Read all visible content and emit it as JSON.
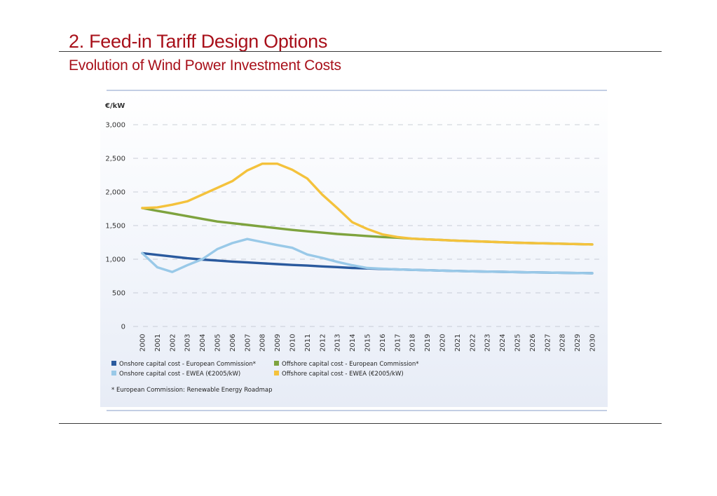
{
  "page": {
    "title": "2. Feed-in Tariff Design Options",
    "subtitle": "Evolution of Wind Power Investment Costs"
  },
  "chart_data": {
    "type": "line",
    "title": "",
    "ylabel": "€/kW",
    "xlabel": "",
    "ylim": [
      0,
      3000
    ],
    "yticks": [
      0,
      500,
      1000,
      1500,
      2000,
      2500,
      3000
    ],
    "ytick_labels": [
      "0",
      "500",
      "1,000",
      "1,500",
      "2,000",
      "2,500",
      "3,000"
    ],
    "x": [
      "2000",
      "2001",
      "2002",
      "2003",
      "2004",
      "2005",
      "2006",
      "2007",
      "2008",
      "2009",
      "2010",
      "2011",
      "2012",
      "2013",
      "2014",
      "2015",
      "2016",
      "2017",
      "2018",
      "2019",
      "2020",
      "2021",
      "2022",
      "2023",
      "2024",
      "2025",
      "2026",
      "2027",
      "2028",
      "2029",
      "2030"
    ],
    "grid": "dashed horizontal",
    "legend": "bottom",
    "series": [
      {
        "name": "Onshore capital cost - European Commission*",
        "color": "#2a5a9e",
        "values": [
          1090,
          1065,
          1040,
          1015,
          995,
          980,
          965,
          952,
          940,
          927,
          915,
          905,
          893,
          882,
          870,
          862,
          855,
          848,
          842,
          836,
          830,
          825,
          820,
          816,
          812,
          808,
          804,
          801,
          798,
          795,
          792
        ]
      },
      {
        "name": "Offshore capital cost - European Commission*",
        "color": "#7ea33e",
        "values": [
          1760,
          1720,
          1680,
          1640,
          1600,
          1560,
          1535,
          1510,
          1485,
          1460,
          1435,
          1415,
          1395,
          1375,
          1360,
          1345,
          1330,
          1320,
          1305,
          1295,
          1285,
          1275,
          1268,
          1260,
          1252,
          1245,
          1240,
          1235,
          1230,
          1225,
          1220
        ]
      },
      {
        "name": "Onshore capital cost - EWEA (€2005/kW)",
        "color": "#99c9e8",
        "values": [
          1090,
          880,
          810,
          910,
          1000,
          1150,
          1240,
          1300,
          1255,
          1210,
          1170,
          1070,
          1020,
          960,
          910,
          870,
          858,
          848,
          842,
          836,
          830,
          825,
          820,
          816,
          812,
          808,
          804,
          801,
          798,
          795,
          792
        ]
      },
      {
        "name": "Offshore capital cost - EWEA (€2005/kW)",
        "color": "#f4c23c",
        "values": [
          1760,
          1770,
          1810,
          1860,
          1960,
          2060,
          2160,
          2320,
          2420,
          2420,
          2330,
          2200,
          1960,
          1760,
          1550,
          1450,
          1370,
          1330,
          1305,
          1295,
          1285,
          1275,
          1268,
          1260,
          1252,
          1245,
          1240,
          1235,
          1230,
          1225,
          1220
        ]
      }
    ],
    "footnote": "* European Commission: Renewable Energy Roadmap"
  }
}
